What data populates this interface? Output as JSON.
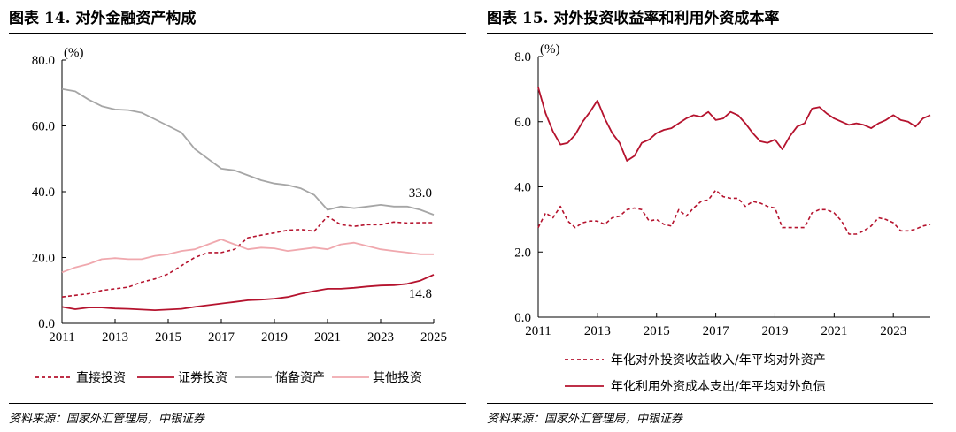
{
  "left": {
    "title": "图表 14. 对外金融资产构成",
    "source": "资料来源：国家外汇管理局，中银证券"
  },
  "right": {
    "title": "图表 15. 对外投资收益率和利用外资成本率",
    "source": "资料来源：国家外汇管理局，中银证券"
  },
  "colors": {
    "dark_red": "#B5132E",
    "pink": "#F0A8AE",
    "gray": "#A6A6A6"
  },
  "chart_data": [
    {
      "type": "line",
      "title": "图表 14. 对外金融资产构成",
      "unit_label": "(%)",
      "ylim": [
        0,
        80
      ],
      "yticks": [
        "0.0",
        "20.0",
        "40.0",
        "60.0",
        "80.0"
      ],
      "xlim": [
        2011,
        2025
      ],
      "xticks": [
        "2011",
        "2013",
        "2015",
        "2017",
        "2019",
        "2021",
        "2023",
        "2025"
      ],
      "legend_position": "bottom",
      "annotations": [
        {
          "text": "33.0",
          "series": "储备资产"
        },
        {
          "text": "14.8",
          "series": "证券投资"
        }
      ],
      "series": [
        {
          "name": "直接投资",
          "style": "dashed",
          "color": "#B5132E",
          "x": [
            2011.0,
            2011.5,
            2012.0,
            2012.5,
            2013.0,
            2013.5,
            2014.0,
            2014.5,
            2015.0,
            2015.5,
            2016.0,
            2016.5,
            2017.0,
            2017.5,
            2018.0,
            2018.5,
            2019.0,
            2019.5,
            2020.0,
            2020.5,
            2021.0,
            2021.5,
            2022.0,
            2022.5,
            2023.0,
            2023.5,
            2024.0,
            2024.5,
            2025.0
          ],
          "y": [
            8.0,
            8.5,
            9.0,
            10.0,
            10.5,
            11.0,
            12.5,
            13.5,
            15.0,
            17.5,
            20.0,
            21.5,
            21.5,
            22.5,
            26.0,
            26.8,
            27.5,
            28.3,
            28.5,
            28.0,
            32.5,
            30.0,
            29.5,
            30.0,
            30.0,
            30.8,
            30.5,
            30.6,
            30.6
          ]
        },
        {
          "name": "证券投资",
          "style": "solid",
          "color": "#B5132E",
          "x": [
            2011.0,
            2011.5,
            2012.0,
            2012.5,
            2013.0,
            2013.5,
            2014.0,
            2014.5,
            2015.0,
            2015.5,
            2016.0,
            2016.5,
            2017.0,
            2017.5,
            2018.0,
            2018.5,
            2019.0,
            2019.5,
            2020.0,
            2020.5,
            2021.0,
            2021.5,
            2022.0,
            2022.5,
            2023.0,
            2023.5,
            2024.0,
            2024.5,
            2025.0
          ],
          "y": [
            5.0,
            4.3,
            4.8,
            4.8,
            4.5,
            4.4,
            4.2,
            4.0,
            4.2,
            4.4,
            5.0,
            5.5,
            6.0,
            6.5,
            7.0,
            7.2,
            7.5,
            8.0,
            9.0,
            9.8,
            10.5,
            10.5,
            10.8,
            11.2,
            11.5,
            11.6,
            12.0,
            13.0,
            14.8
          ]
        },
        {
          "name": "储备资产",
          "style": "solid",
          "color": "#A6A6A6",
          "x": [
            2011.0,
            2011.5,
            2012.0,
            2012.5,
            2013.0,
            2013.5,
            2014.0,
            2014.5,
            2015.0,
            2015.5,
            2016.0,
            2016.5,
            2017.0,
            2017.5,
            2018.0,
            2018.5,
            2019.0,
            2019.5,
            2020.0,
            2020.5,
            2021.0,
            2021.5,
            2022.0,
            2022.5,
            2023.0,
            2023.5,
            2024.0,
            2024.5,
            2025.0
          ],
          "y": [
            71.2,
            70.5,
            68.0,
            66.0,
            65.0,
            64.8,
            64.0,
            62.0,
            60.0,
            58.0,
            53.0,
            50.0,
            47.0,
            46.5,
            45.0,
            43.5,
            42.5,
            42.0,
            41.0,
            39.0,
            34.5,
            35.5,
            35.0,
            35.5,
            36.0,
            35.5,
            35.5,
            34.5,
            33.0
          ]
        },
        {
          "name": "其他投资",
          "style": "solid",
          "color": "#F0A8AE",
          "x": [
            2011.0,
            2011.5,
            2012.0,
            2012.5,
            2013.0,
            2013.5,
            2014.0,
            2014.5,
            2015.0,
            2015.5,
            2016.0,
            2016.5,
            2017.0,
            2017.5,
            2018.0,
            2018.5,
            2019.0,
            2019.5,
            2020.0,
            2020.5,
            2021.0,
            2021.5,
            2022.0,
            2022.5,
            2023.0,
            2023.5,
            2024.0,
            2024.5,
            2025.0
          ],
          "y": [
            15.5,
            17.0,
            18.0,
            19.5,
            19.8,
            19.5,
            19.5,
            20.5,
            21.0,
            22.0,
            22.5,
            24.0,
            25.5,
            24.0,
            22.5,
            23.0,
            22.8,
            22.0,
            22.5,
            23.0,
            22.5,
            24.0,
            24.5,
            23.5,
            22.5,
            22.0,
            21.5,
            21.0,
            21.0
          ]
        }
      ]
    },
    {
      "type": "line",
      "title": "图表 15. 对外投资收益率和利用外资成本率",
      "unit_label": "(%)",
      "ylim": [
        0,
        8
      ],
      "yticks": [
        "0.0",
        "2.0",
        "4.0",
        "6.0",
        "8.0"
      ],
      "xlim": [
        2011,
        2024.25
      ],
      "xticks": [
        "2011",
        "2013",
        "2015",
        "2017",
        "2019",
        "2021",
        "2023"
      ],
      "legend_position": "bottom",
      "series": [
        {
          "name": "年化对外投资收益收入/年平均对外资产",
          "style": "dashed",
          "color": "#B5132E",
          "x": [
            2011.0,
            2011.25,
            2011.5,
            2011.75,
            2012.0,
            2012.25,
            2012.5,
            2012.75,
            2013.0,
            2013.25,
            2013.5,
            2013.75,
            2014.0,
            2014.25,
            2014.5,
            2014.75,
            2015.0,
            2015.25,
            2015.5,
            2015.75,
            2016.0,
            2016.25,
            2016.5,
            2016.75,
            2017.0,
            2017.25,
            2017.5,
            2017.75,
            2018.0,
            2018.25,
            2018.5,
            2018.75,
            2019.0,
            2019.25,
            2019.5,
            2019.75,
            2020.0,
            2020.25,
            2020.5,
            2020.75,
            2021.0,
            2021.25,
            2021.5,
            2021.75,
            2022.0,
            2022.25,
            2022.5,
            2022.75,
            2023.0,
            2023.25,
            2023.5,
            2023.75,
            2024.0,
            2024.25
          ],
          "y": [
            2.75,
            3.2,
            3.05,
            3.4,
            2.95,
            2.75,
            2.9,
            2.95,
            2.95,
            2.85,
            3.05,
            3.1,
            3.3,
            3.35,
            3.3,
            2.95,
            3.0,
            2.85,
            2.8,
            3.3,
            3.1,
            3.35,
            3.55,
            3.6,
            3.9,
            3.7,
            3.65,
            3.65,
            3.4,
            3.55,
            3.5,
            3.4,
            3.35,
            2.75,
            2.75,
            2.75,
            2.75,
            3.2,
            3.3,
            3.3,
            3.2,
            2.95,
            2.55,
            2.55,
            2.65,
            2.8,
            3.05,
            3.0,
            2.9,
            2.65,
            2.65,
            2.7,
            2.8,
            2.85
          ]
        },
        {
          "name": "年化利用外资成本支出/年平均对外负债",
          "style": "solid",
          "color": "#B5132E",
          "x": [
            2011.0,
            2011.25,
            2011.5,
            2011.75,
            2012.0,
            2012.25,
            2012.5,
            2012.75,
            2013.0,
            2013.25,
            2013.5,
            2013.75,
            2014.0,
            2014.25,
            2014.5,
            2014.75,
            2015.0,
            2015.25,
            2015.5,
            2015.75,
            2016.0,
            2016.25,
            2016.5,
            2016.75,
            2017.0,
            2017.25,
            2017.5,
            2017.75,
            2018.0,
            2018.25,
            2018.5,
            2018.75,
            2019.0,
            2019.25,
            2019.5,
            2019.75,
            2020.0,
            2020.25,
            2020.5,
            2020.75,
            2021.0,
            2021.25,
            2021.5,
            2021.75,
            2022.0,
            2022.25,
            2022.5,
            2022.75,
            2023.0,
            2023.25,
            2023.5,
            2023.75,
            2024.0,
            2024.25
          ],
          "y": [
            7.05,
            6.25,
            5.7,
            5.3,
            5.35,
            5.6,
            6.0,
            6.3,
            6.65,
            6.1,
            5.65,
            5.35,
            4.8,
            4.95,
            5.35,
            5.45,
            5.65,
            5.75,
            5.8,
            5.95,
            6.1,
            6.2,
            6.15,
            6.3,
            6.05,
            6.1,
            6.3,
            6.2,
            5.95,
            5.65,
            5.4,
            5.35,
            5.45,
            5.15,
            5.55,
            5.85,
            5.95,
            6.4,
            6.45,
            6.25,
            6.1,
            6.0,
            5.9,
            5.95,
            5.9,
            5.8,
            5.95,
            6.05,
            6.2,
            6.05,
            6.0,
            5.85,
            6.1,
            6.2
          ]
        }
      ]
    }
  ]
}
